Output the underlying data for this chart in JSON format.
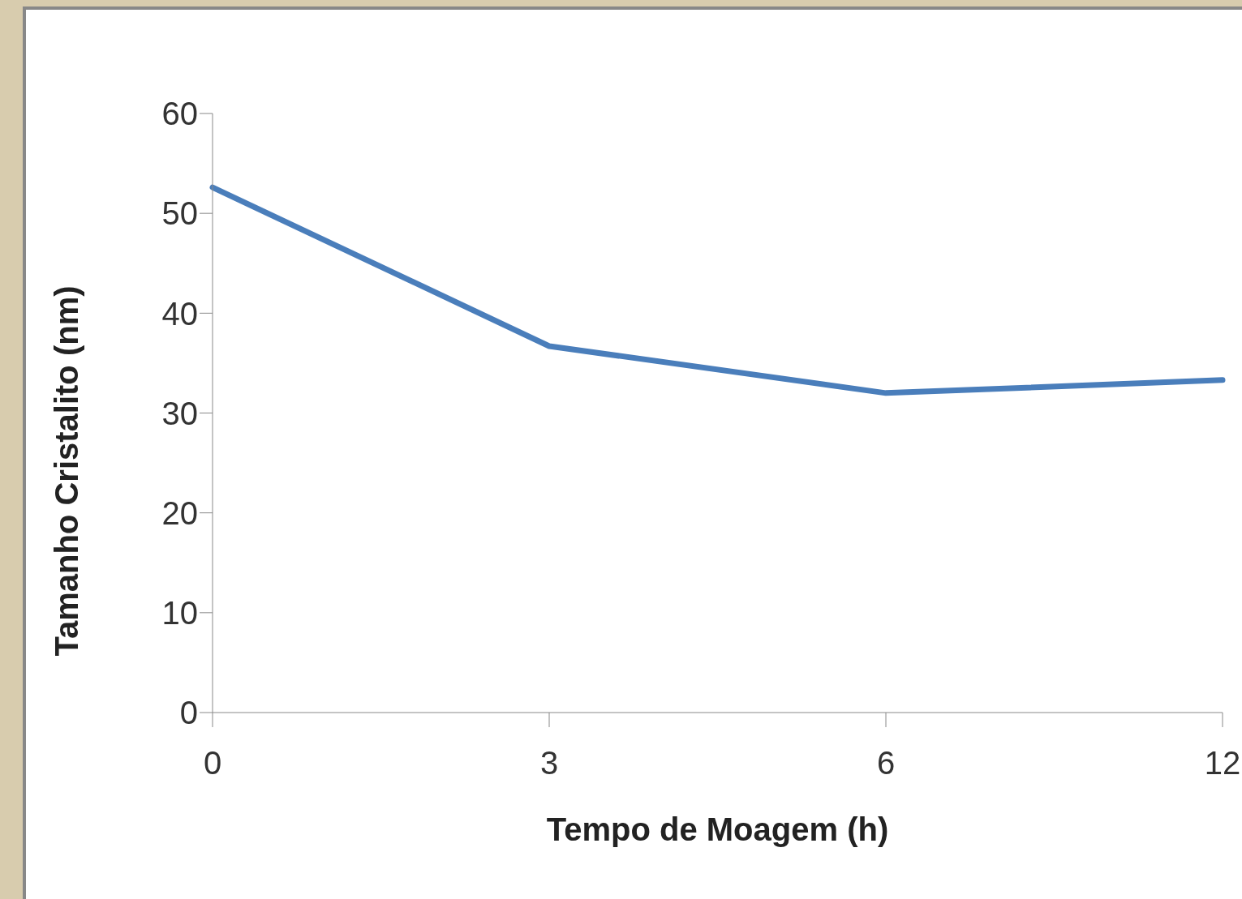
{
  "chart_data": {
    "type": "line",
    "xlabel": "Tempo de Moagem (h)",
    "ylabel": "Tamanho Cristalito (nm)",
    "categories": [
      "0",
      "3",
      "6",
      "12"
    ],
    "series": [
      {
        "color": "#4a7ebb",
        "values": [
          52.6,
          36.7,
          32.0,
          33.3
        ]
      }
    ],
    "ylim": [
      0,
      60
    ],
    "yticks": [
      0,
      10,
      20,
      30,
      40,
      50,
      60
    ],
    "grid": false,
    "legend": false,
    "marker": "none",
    "line_style": "solid"
  }
}
